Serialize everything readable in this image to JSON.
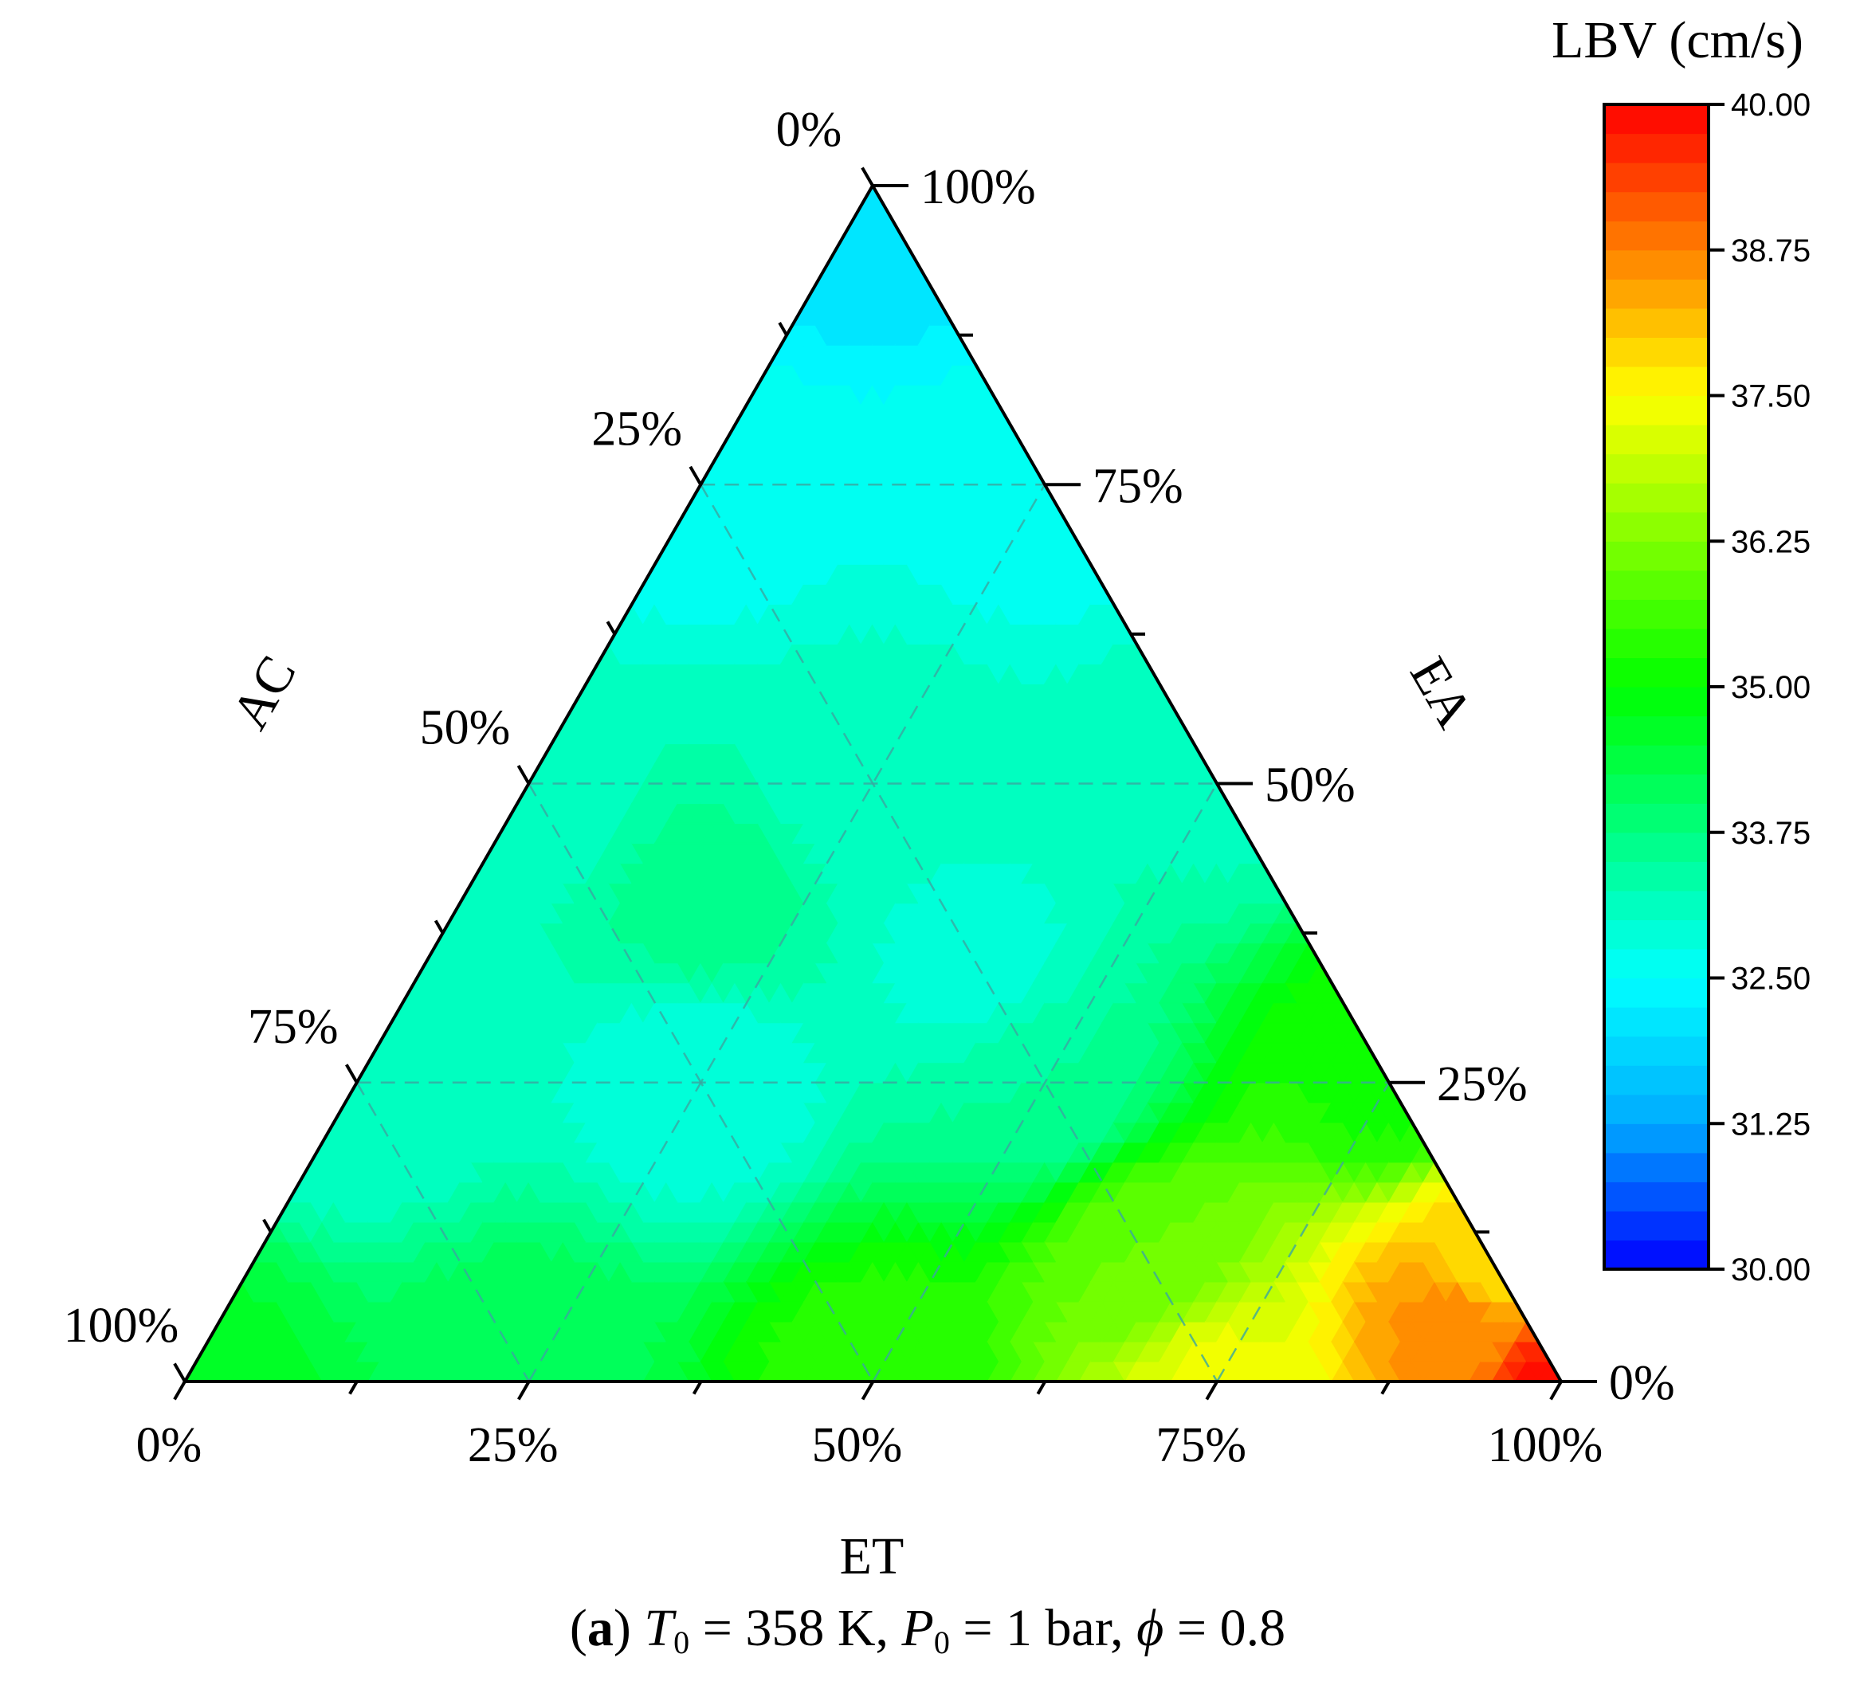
{
  "chart_data": {
    "type": "heatmap",
    "subtype": "ternary-contour",
    "axes": {
      "bottom": {
        "label": "ET",
        "ticks": [
          "0%",
          "25%",
          "50%",
          "75%",
          "100%"
        ]
      },
      "left": {
        "label": "AC",
        "ticks": [
          "100%",
          "75%",
          "50%",
          "25%",
          "0%"
        ]
      },
      "right": {
        "label": "EA",
        "ticks": [
          "0%",
          "25%",
          "50%",
          "75%",
          "100%"
        ]
      }
    },
    "colorbar": {
      "title": "LBV (cm/s)",
      "range": [
        30.0,
        40.0
      ],
      "ticks": [
        "30.00",
        "31.25",
        "32.50",
        "33.75",
        "35.00",
        "36.25",
        "37.50",
        "38.75",
        "40.00"
      ],
      "colormap": [
        "#0000ff",
        "#00aaff",
        "#00ffff",
        "#00ff80",
        "#00ff00",
        "#80ff00",
        "#ffff00",
        "#ff8000",
        "#ff0000"
      ]
    },
    "grid": true,
    "grid_style": "dashed",
    "samples": [
      {
        "et": 0.0,
        "ea": 1.0,
        "ac": 0.0,
        "lbv": 32.0
      },
      {
        "et": 0.0,
        "ea": 0.75,
        "ac": 0.25,
        "lbv": 32.6
      },
      {
        "et": 0.25,
        "ea": 0.75,
        "ac": 0.0,
        "lbv": 32.6
      },
      {
        "et": 0.0,
        "ea": 0.5,
        "ac": 0.5,
        "lbv": 33.1
      },
      {
        "et": 0.5,
        "ea": 0.5,
        "ac": 0.0,
        "lbv": 33.2
      },
      {
        "et": 0.25,
        "ea": 0.5,
        "ac": 0.25,
        "lbv": 33.1
      },
      {
        "et": 0.18,
        "ea": 0.4,
        "ac": 0.42,
        "lbv": 33.6
      },
      {
        "et": 0.4,
        "ea": 0.35,
        "ac": 0.25,
        "lbv": 32.9
      },
      {
        "et": 0.0,
        "ea": 0.25,
        "ac": 0.75,
        "lbv": 33.0
      },
      {
        "et": 0.25,
        "ea": 0.25,
        "ac": 0.5,
        "lbv": 32.8
      },
      {
        "et": 0.5,
        "ea": 0.25,
        "ac": 0.25,
        "lbv": 33.5
      },
      {
        "et": 0.75,
        "ea": 0.25,
        "ac": 0.0,
        "lbv": 35.2
      },
      {
        "et": 0.0,
        "ea": 0.0,
        "ac": 1.0,
        "lbv": 34.6
      },
      {
        "et": 0.25,
        "ea": 0.0,
        "ac": 0.75,
        "lbv": 34.2
      },
      {
        "et": 0.5,
        "ea": 0.0,
        "ac": 0.5,
        "lbv": 35.4
      },
      {
        "et": 0.75,
        "ea": 0.0,
        "ac": 0.25,
        "lbv": 37.3
      },
      {
        "et": 0.9,
        "ea": 0.05,
        "ac": 0.05,
        "lbv": 38.6
      },
      {
        "et": 1.0,
        "ea": 0.0,
        "ac": 0.0,
        "lbv": 39.8
      },
      {
        "et": 0.9,
        "ea": 0.1,
        "ac": 0.0,
        "lbv": 37.8
      },
      {
        "et": 0.65,
        "ea": 0.1,
        "ac": 0.25,
        "lbv": 36.0
      }
    ]
  },
  "caption": {
    "label": "a",
    "t0_symbol": "T",
    "t0_sub": "0",
    "t0_value": " = 358 K, ",
    "p0_symbol": "P",
    "p0_sub": "0",
    "p0_value": " = 1 bar, ",
    "phi_symbol": "ϕ",
    "phi_value": " = 0.8"
  }
}
